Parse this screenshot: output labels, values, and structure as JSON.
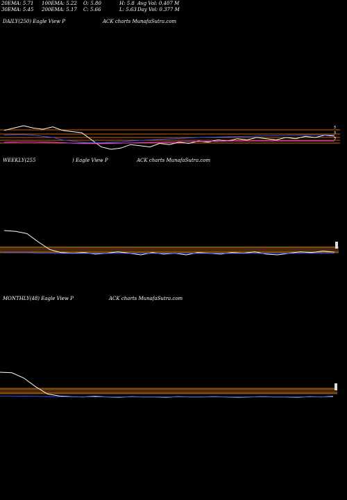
{
  "header": {
    "ema20": "20EMA: 5.71",
    "ema30": "30EMA: 5.45",
    "ema100": "100EMA: 5.22",
    "ema200": "200EMA: 5.17",
    "open": "O: 5.80",
    "close": "C: 5.66",
    "high": "H: 5.8",
    "low": "L: 5.63",
    "avg_vol": "Avg Vol: 0.407 M",
    "day_vol": "Day Vol: 0.377 M"
  },
  "panels": {
    "daily": {
      "left": "DAILY(250) Eagle   View  P",
      "right": "ACK charts MunafaSutra.com"
    },
    "weekly": {
      "left": "WEEKLY(255",
      "mid": ") Eagle   View  P",
      "right": "ACK charts MunafaSutra.com"
    },
    "monthly": {
      "left": "MONTHLY(48) Eagle   View  P",
      "right": "ACK charts MunafaSutra.com"
    }
  },
  "colors": {
    "background": "#000000",
    "price": "#ffffff",
    "ema_blue": "#3355ff",
    "ema_magenta": "#ff33ff",
    "ema_green": "#33aa33",
    "level_orange": "#cc6600",
    "volume_band": "#7a4a1a"
  },
  "chart_data": [
    {
      "type": "line",
      "name": "daily",
      "x_points": 250,
      "series": [
        {
          "values": [
            5.9,
            6.0,
            6.1,
            6.0,
            5.95,
            6.05,
            5.9,
            5.85,
            5.8,
            5.5,
            5.2,
            5.1,
            5.15,
            5.3,
            5.25,
            5.2,
            5.35,
            5.3,
            5.4,
            5.35,
            5.45,
            5.4,
            5.5,
            5.45,
            5.55,
            5.5,
            5.6,
            5.55,
            5.5,
            5.6,
            5.55,
            5.65,
            5.6,
            5.7,
            5.66
          ]
        },
        {
          "values": [
            5.7,
            5.72,
            5.72,
            5.7,
            5.65,
            5.6,
            5.5,
            5.45,
            5.4,
            5.38,
            5.38,
            5.4,
            5.42,
            5.45,
            5.48,
            5.5,
            5.52,
            5.54,
            5.56,
            5.58,
            5.6,
            5.61,
            5.62,
            5.63,
            5.64,
            5.65,
            5.66,
            5.67,
            5.68,
            5.69,
            5.7,
            5.7,
            5.71,
            5.71,
            5.71
          ]
        },
        {
          "values": [
            5.4,
            5.41,
            5.42,
            5.42,
            5.41,
            5.4,
            5.38,
            5.36,
            5.35,
            5.34,
            5.34,
            5.35,
            5.36,
            5.37,
            5.38,
            5.39,
            5.4,
            5.41,
            5.42,
            5.43,
            5.43,
            5.44,
            5.44,
            5.45,
            5.45,
            5.45,
            5.45,
            5.45,
            5.45,
            5.45,
            5.45,
            5.45,
            5.45,
            5.45,
            5.45
          ]
        }
      ]
    },
    {
      "type": "line",
      "name": "weekly",
      "x_points": 255,
      "series": [
        {
          "values": [
            8.5,
            8.4,
            8.1,
            7.0,
            6.0,
            5.6,
            5.5,
            5.6,
            5.4,
            5.5,
            5.7,
            5.5,
            5.3,
            5.6,
            5.4,
            5.5,
            5.3,
            5.6,
            5.5,
            5.4,
            5.6,
            5.5,
            5.7,
            5.4,
            5.3,
            5.5,
            5.7,
            5.6,
            5.8,
            5.66
          ]
        },
        {
          "values": [
            5.6,
            5.6,
            5.6,
            5.55,
            5.55,
            5.5,
            5.5,
            5.5,
            5.5,
            5.5,
            5.5,
            5.5,
            5.5,
            5.5,
            5.5,
            5.5,
            5.5,
            5.5,
            5.5,
            5.5,
            5.5,
            5.5,
            5.5,
            5.5,
            5.5,
            5.5,
            5.5,
            5.5,
            5.5,
            5.5
          ]
        }
      ]
    },
    {
      "type": "line",
      "name": "monthly",
      "x_points": 48,
      "series": [
        {
          "values": [
            14,
            13.8,
            12,
            9,
            6.5,
            5.8,
            5.6,
            5.5,
            5.7,
            5.5,
            5.4,
            5.6,
            5.5,
            5.5,
            5.4,
            5.6,
            5.5,
            5.5,
            5.6,
            5.5,
            5.4,
            5.5,
            5.6,
            5.5,
            5.5,
            5.4,
            5.6,
            5.5,
            5.66
          ]
        },
        {
          "values": [
            5.8,
            5.8,
            5.75,
            5.7,
            5.65,
            5.6,
            5.55,
            5.55,
            5.5,
            5.5,
            5.5,
            5.5,
            5.5,
            5.5,
            5.5,
            5.5,
            5.5,
            5.5,
            5.5,
            5.5,
            5.5,
            5.5,
            5.5,
            5.5,
            5.5,
            5.5,
            5.5,
            5.5,
            5.5
          ]
        }
      ]
    }
  ]
}
